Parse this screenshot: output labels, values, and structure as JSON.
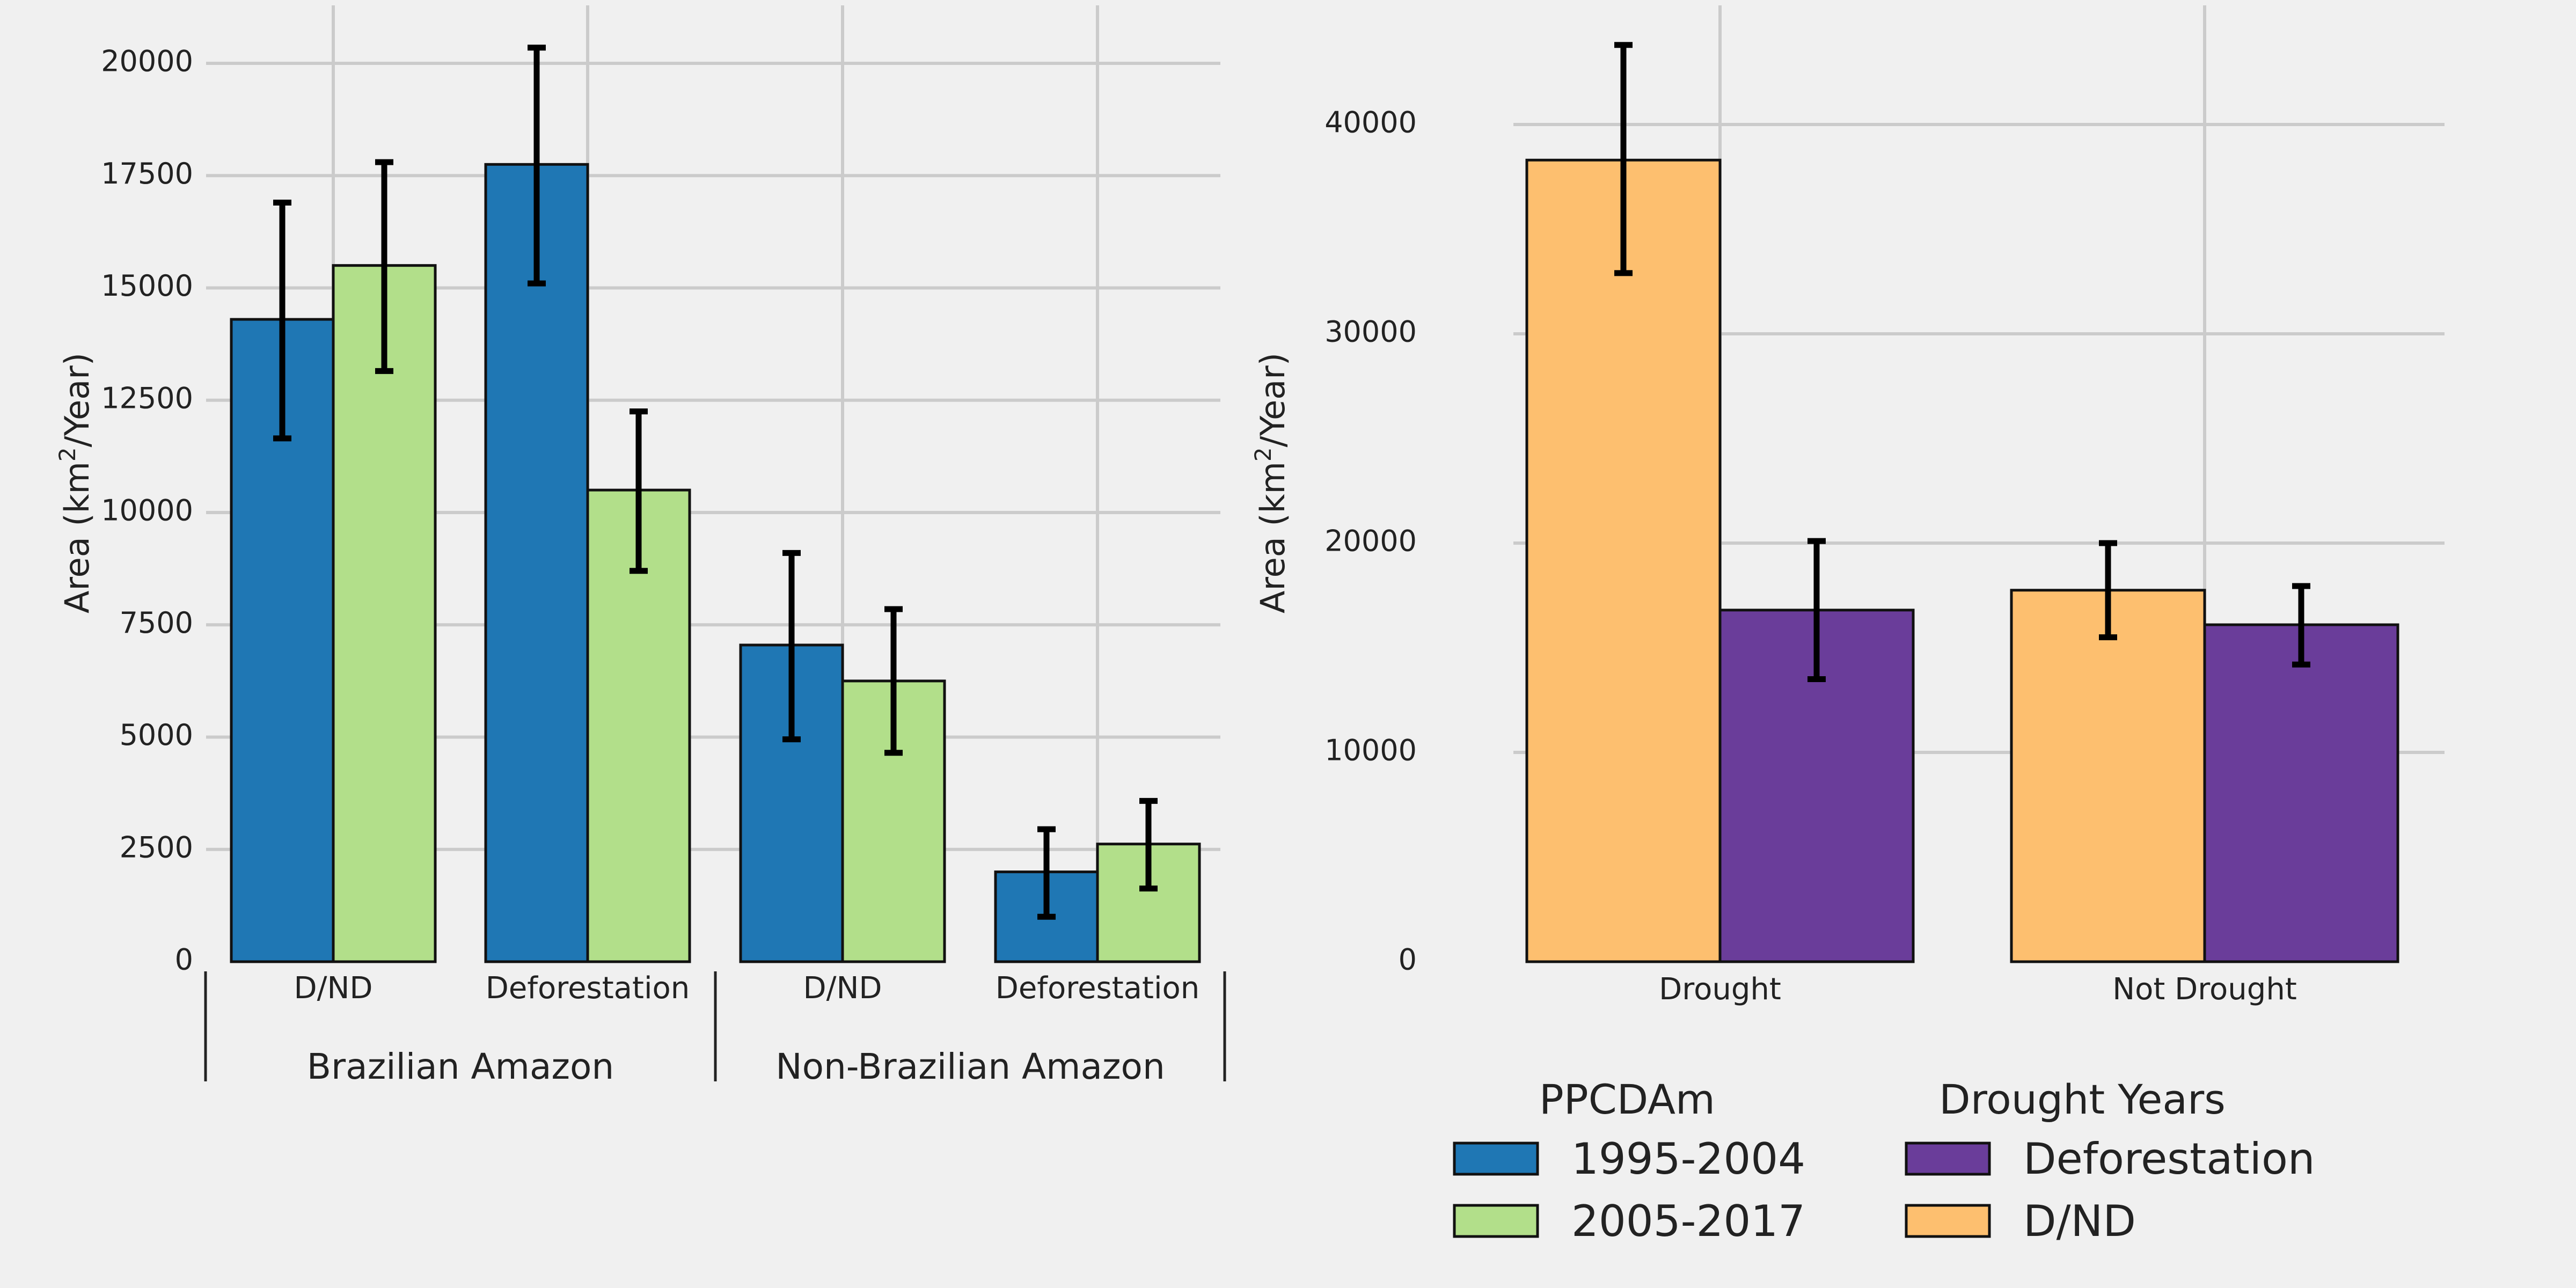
{
  "colors": {
    "background": "#f0f0f0",
    "grid": "#cbcbcb",
    "period_1995_2004": "#1f77b4",
    "period_2005_2017": "#b2df8a",
    "deforestation": "#6a3d9a",
    "dnd": "#fdbf6f"
  },
  "chart_data": [
    {
      "type": "bar",
      "ylabel": "Area (km²/Year)",
      "ylabel_parts": {
        "pre": "Area (km",
        "sup": "2",
        "post": "/Year)"
      },
      "ylim": [
        0,
        21200
      ],
      "yticks": [
        0,
        2500,
        5000,
        7500,
        10000,
        12500,
        15000,
        17500,
        20000
      ],
      "grid": true,
      "categories": [
        "D/ND",
        "Deforestation",
        "D/ND",
        "Deforestation"
      ],
      "groups": [
        {
          "label": "Brazilian Amazon",
          "categories": [
            0,
            1
          ]
        },
        {
          "label": "Non-Brazilian Amazon",
          "categories": [
            2,
            3
          ]
        }
      ],
      "series": [
        {
          "name": "1995-2004",
          "color": "#1f77b4",
          "values": [
            14300,
            17750,
            7050,
            2000
          ],
          "error_low": [
            11650,
            15100,
            4950,
            1000
          ],
          "error_high": [
            16900,
            20350,
            9100,
            2950
          ]
        },
        {
          "name": "2005-2017",
          "color": "#b2df8a",
          "values": [
            15500,
            10500,
            6250,
            2620
          ],
          "error_low": [
            13150,
            8700,
            4650,
            1630
          ],
          "error_high": [
            17800,
            12250,
            7850,
            3580
          ]
        }
      ]
    },
    {
      "type": "bar",
      "ylabel": "Area (km²/Year)",
      "ylabel_parts": {
        "pre": "Area (km",
        "sup": "2",
        "post": "/Year)"
      },
      "ylim": [
        0,
        45500
      ],
      "yticks": [
        0,
        10000,
        20000,
        30000,
        40000
      ],
      "grid": true,
      "categories": [
        "Drought",
        "Not Drought"
      ],
      "series": [
        {
          "name": "D/ND",
          "color": "#fdbf6f",
          "values": [
            38300,
            17750
          ],
          "error_low": [
            32900,
            15500
          ],
          "error_high": [
            43800,
            20000
          ]
        },
        {
          "name": "Deforestation",
          "color": "#6a3d9a",
          "values": [
            16800,
            16100
          ],
          "error_low": [
            13500,
            14200
          ],
          "error_high": [
            20100,
            17950
          ]
        }
      ]
    }
  ],
  "legends": [
    {
      "title": "PPCDAm",
      "entries": [
        {
          "label": "1995-2004",
          "color": "#1f77b4"
        },
        {
          "label": "2005-2017",
          "color": "#b2df8a"
        }
      ]
    },
    {
      "title": "Drought Years",
      "entries": [
        {
          "label": "Deforestation",
          "color": "#6a3d9a"
        },
        {
          "label": "D/ND",
          "color": "#fdbf6f"
        }
      ]
    }
  ]
}
